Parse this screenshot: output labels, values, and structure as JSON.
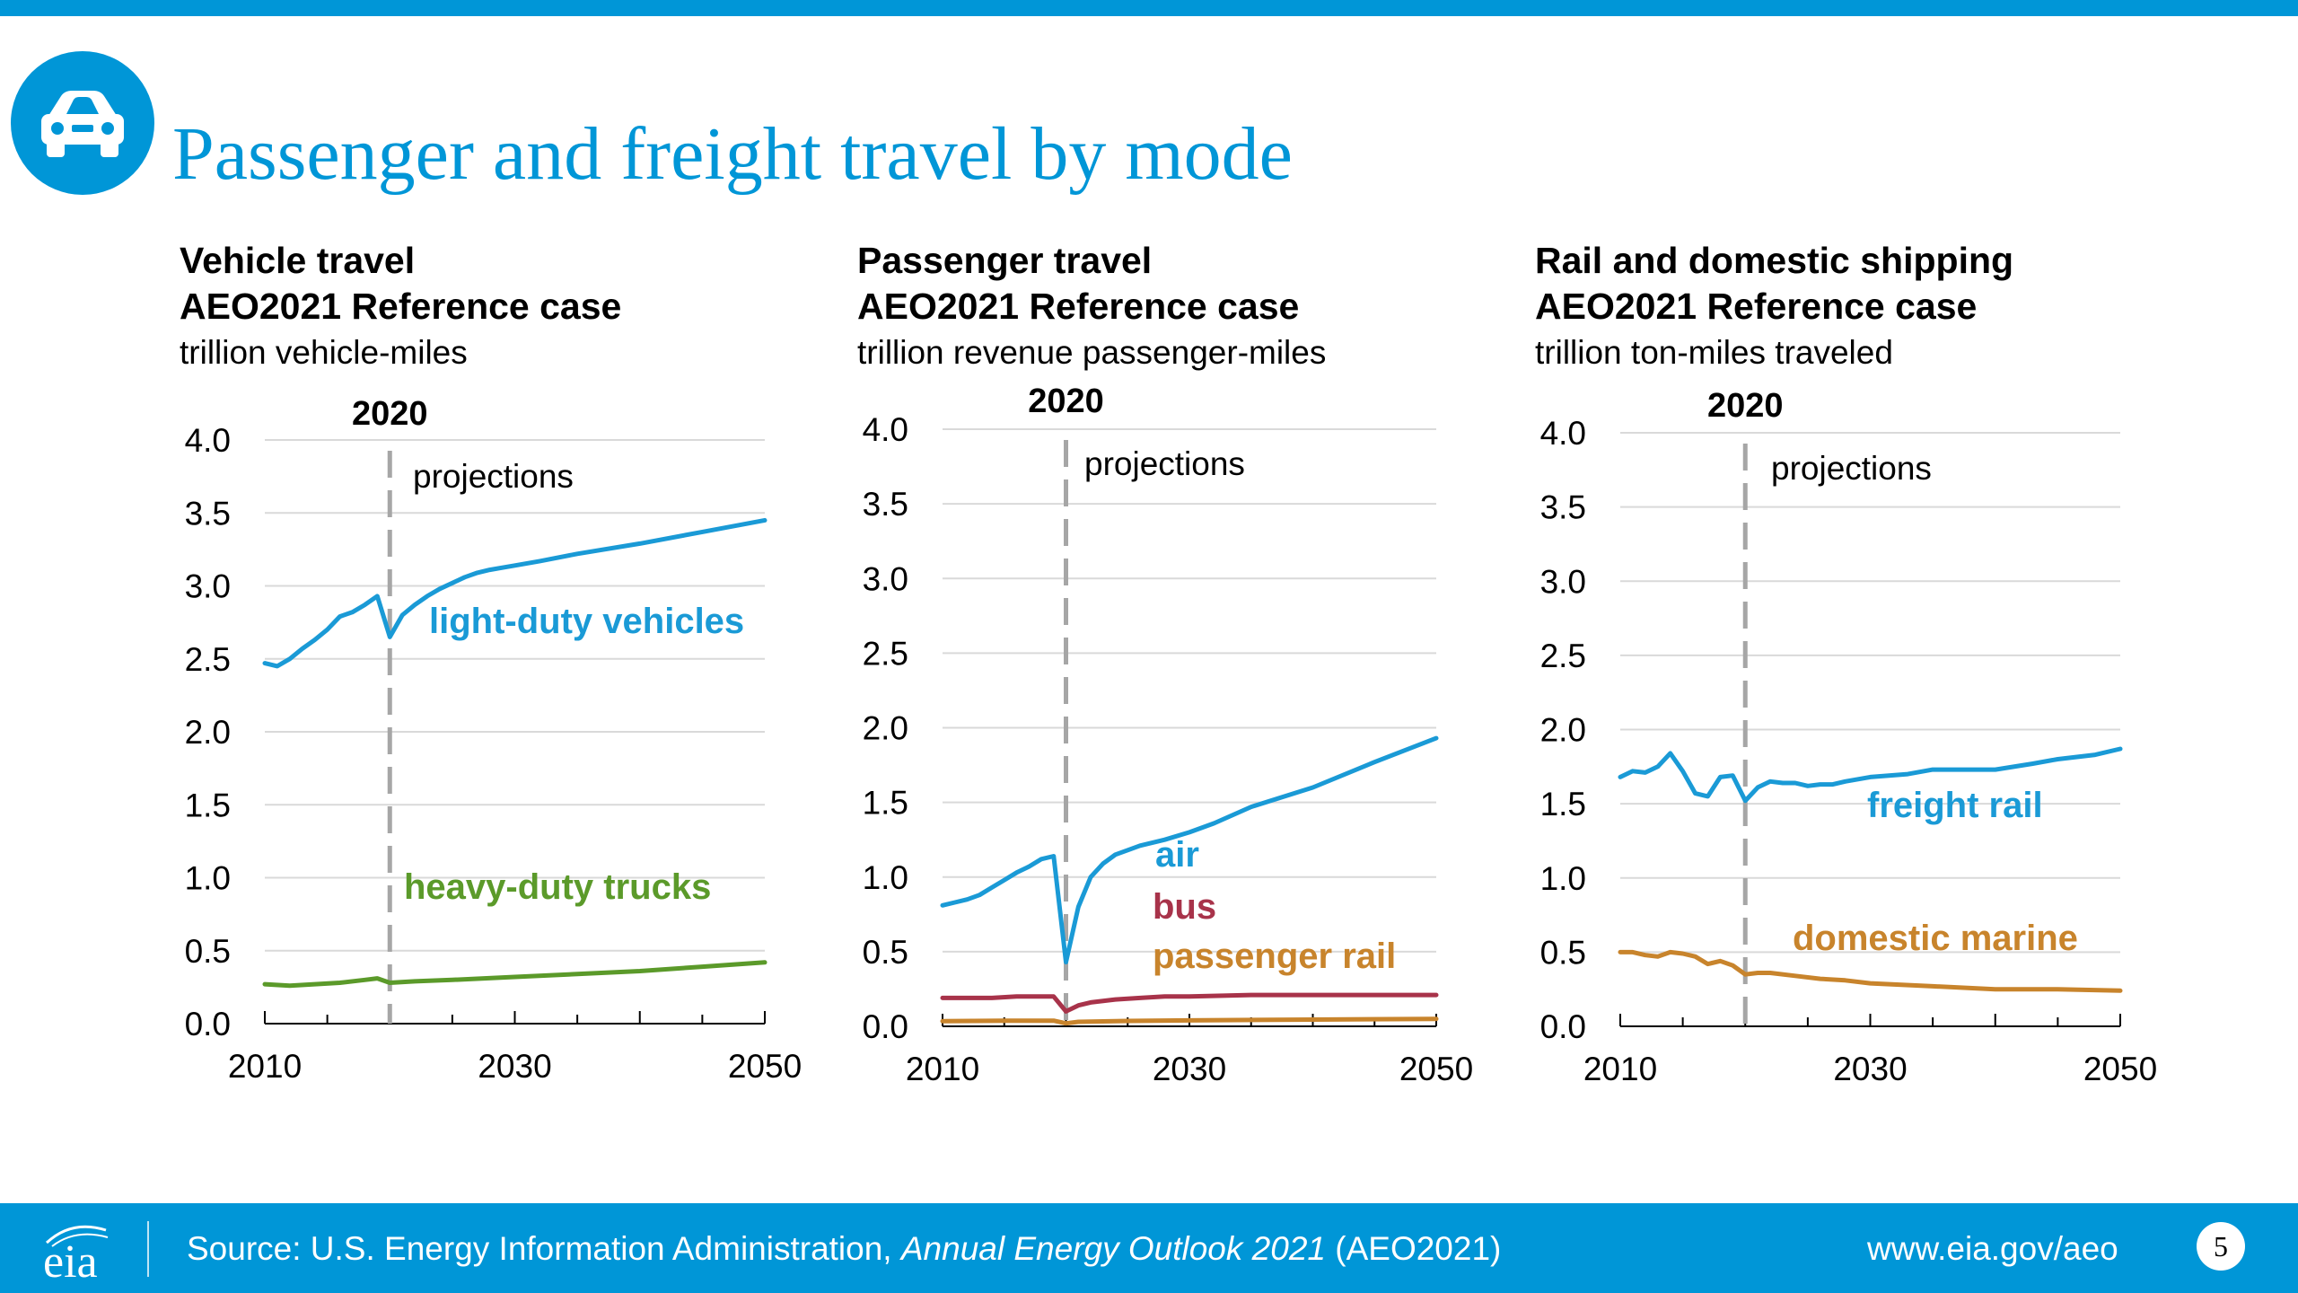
{
  "header": {
    "title": "Passenger and freight travel by mode",
    "badge_icon": "car-icon"
  },
  "colors": {
    "brand": "#0096d7",
    "light_duty": "#1a9ad6",
    "heavy_duty": "#5b9a2a",
    "air": "#1a9ad6",
    "bus": "#a8334a",
    "passenger_rail": "#c8842c",
    "freight_rail": "#1a9ad6",
    "domestic_marine": "#c8842c",
    "grid": "#d9d9d9",
    "divider": "#a6a6a6"
  },
  "chart_data": [
    {
      "type": "line",
      "title": "Vehicle travel",
      "subtitle": "AEO2021 Reference case",
      "ylabel": "trillion vehicle-miles",
      "xlim": [
        2010,
        2050
      ],
      "ylim": [
        0,
        4
      ],
      "yticks": [
        "0.0",
        "0.5",
        "1.0",
        "1.5",
        "2.0",
        "2.5",
        "3.0",
        "3.5",
        "4.0"
      ],
      "xticks": [
        "2010",
        "2030",
        "2050"
      ],
      "grid": true,
      "divider": {
        "year": 2020,
        "label": "2020",
        "note": "projections"
      },
      "series": [
        {
          "name": "light-duty vehicles",
          "color_key": "light_duty",
          "x": [
            2010,
            2011,
            2012,
            2013,
            2014,
            2015,
            2016,
            2017,
            2018,
            2019,
            2020,
            2021,
            2022,
            2023,
            2024,
            2025,
            2026,
            2027,
            2028,
            2030,
            2032,
            2035,
            2040,
            2045,
            2050
          ],
          "values": [
            2.47,
            2.45,
            2.5,
            2.57,
            2.63,
            2.7,
            2.79,
            2.82,
            2.87,
            2.93,
            2.65,
            2.8,
            2.87,
            2.93,
            2.98,
            3.02,
            3.06,
            3.09,
            3.11,
            3.14,
            3.17,
            3.22,
            3.29,
            3.37,
            3.45
          ]
        },
        {
          "name": "heavy-duty trucks",
          "color_key": "heavy_duty",
          "x": [
            2010,
            2012,
            2014,
            2016,
            2018,
            2019,
            2020,
            2022,
            2025,
            2030,
            2035,
            2040,
            2045,
            2050
          ],
          "values": [
            0.27,
            0.26,
            0.27,
            0.28,
            0.3,
            0.31,
            0.28,
            0.29,
            0.3,
            0.32,
            0.34,
            0.36,
            0.39,
            0.42
          ]
        }
      ]
    },
    {
      "type": "line",
      "title": "Passenger travel",
      "subtitle": "AEO2021 Reference case",
      "ylabel": "trillion revenue passenger-miles",
      "xlim": [
        2010,
        2050
      ],
      "ylim": [
        0,
        4
      ],
      "yticks": [
        "0.0",
        "0.5",
        "1.0",
        "1.5",
        "2.0",
        "2.5",
        "3.0",
        "3.5",
        "4.0"
      ],
      "xticks": [
        "2010",
        "2030",
        "2050"
      ],
      "grid": true,
      "divider": {
        "year": 2020,
        "label": "2020",
        "note": "projections"
      },
      "series": [
        {
          "name": "air",
          "color_key": "air",
          "x": [
            2010,
            2011,
            2012,
            2013,
            2014,
            2015,
            2016,
            2017,
            2018,
            2019,
            2020,
            2021,
            2022,
            2023,
            2024,
            2025,
            2026,
            2028,
            2030,
            2032,
            2035,
            2040,
            2045,
            2050
          ],
          "values": [
            0.81,
            0.83,
            0.85,
            0.88,
            0.93,
            0.98,
            1.03,
            1.07,
            1.12,
            1.14,
            0.43,
            0.8,
            1.0,
            1.09,
            1.15,
            1.18,
            1.21,
            1.25,
            1.3,
            1.36,
            1.47,
            1.6,
            1.77,
            1.93
          ]
        },
        {
          "name": "bus",
          "color_key": "bus",
          "x": [
            2010,
            2012,
            2014,
            2016,
            2018,
            2019,
            2020,
            2021,
            2022,
            2024,
            2026,
            2028,
            2030,
            2035,
            2040,
            2045,
            2050
          ],
          "values": [
            0.19,
            0.19,
            0.19,
            0.2,
            0.2,
            0.2,
            0.1,
            0.14,
            0.16,
            0.18,
            0.19,
            0.2,
            0.2,
            0.21,
            0.21,
            0.21,
            0.21
          ]
        },
        {
          "name": "passenger rail",
          "color_key": "passenger_rail",
          "x": [
            2010,
            2015,
            2019,
            2020,
            2021,
            2025,
            2030,
            2040,
            2050
          ],
          "values": [
            0.035,
            0.037,
            0.038,
            0.02,
            0.03,
            0.036,
            0.04,
            0.045,
            0.05
          ]
        }
      ]
    },
    {
      "type": "line",
      "title": "Rail and domestic shipping",
      "subtitle": "AEO2021 Reference case",
      "ylabel": "trillion ton-miles traveled",
      "xlim": [
        2010,
        2050
      ],
      "ylim": [
        0,
        4
      ],
      "yticks": [
        "0.0",
        "0.5",
        "1.0",
        "1.5",
        "2.0",
        "2.5",
        "3.0",
        "3.5",
        "4.0"
      ],
      "xticks": [
        "2010",
        "2030",
        "2050"
      ],
      "grid": true,
      "divider": {
        "year": 2020,
        "label": "2020",
        "note": "projections"
      },
      "series": [
        {
          "name": "freight rail",
          "color_key": "freight_rail",
          "x": [
            2010,
            2011,
            2012,
            2013,
            2014,
            2015,
            2016,
            2017,
            2018,
            2019,
            2020,
            2021,
            2022,
            2023,
            2024,
            2025,
            2026,
            2027,
            2028,
            2030,
            2033,
            2035,
            2038,
            2040,
            2043,
            2045,
            2048,
            2050
          ],
          "values": [
            1.68,
            1.72,
            1.71,
            1.75,
            1.84,
            1.72,
            1.57,
            1.55,
            1.68,
            1.69,
            1.52,
            1.61,
            1.65,
            1.64,
            1.64,
            1.62,
            1.63,
            1.63,
            1.65,
            1.68,
            1.7,
            1.73,
            1.73,
            1.73,
            1.77,
            1.8,
            1.83,
            1.87
          ]
        },
        {
          "name": "domestic marine",
          "color_key": "domestic_marine",
          "x": [
            2010,
            2011,
            2012,
            2013,
            2014,
            2015,
            2016,
            2017,
            2018,
            2019,
            2020,
            2021,
            2022,
            2024,
            2026,
            2028,
            2030,
            2035,
            2040,
            2045,
            2050
          ],
          "values": [
            0.5,
            0.5,
            0.48,
            0.47,
            0.5,
            0.49,
            0.47,
            0.42,
            0.44,
            0.41,
            0.35,
            0.36,
            0.36,
            0.34,
            0.32,
            0.31,
            0.29,
            0.27,
            0.25,
            0.25,
            0.24
          ]
        }
      ]
    }
  ],
  "footer": {
    "logo_text": "eia",
    "source_prefix": "Source: U.S. Energy Information Administration,",
    "source_publication": "Annual Energy Outlook 2021",
    "source_suffix": "(AEO2021)",
    "url": "www.eia.gov/aeo",
    "page_number": "5"
  }
}
